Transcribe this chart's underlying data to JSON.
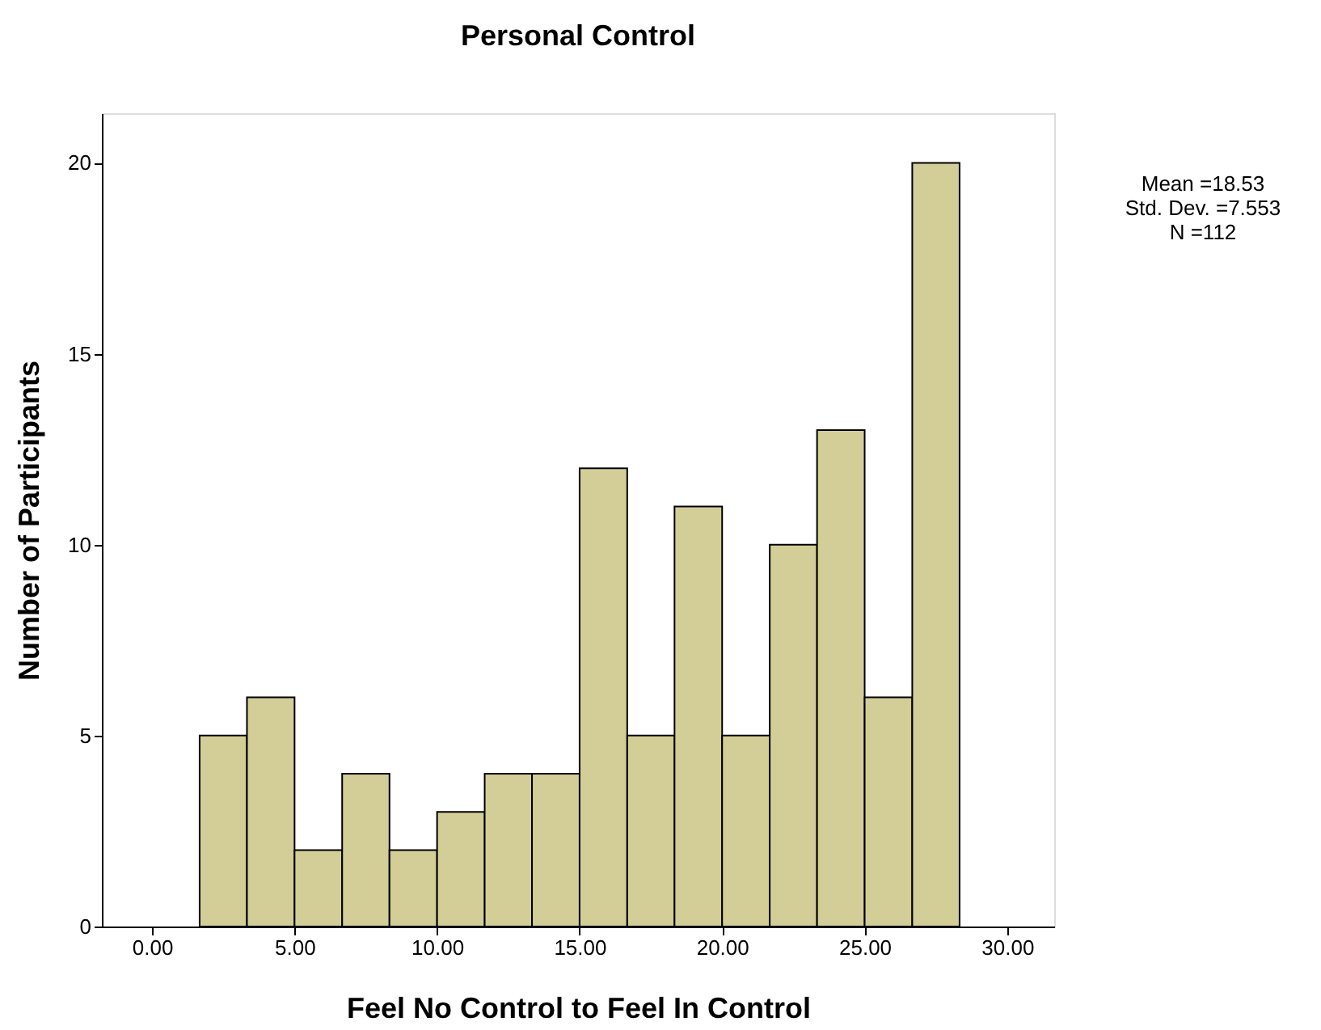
{
  "chart_data": {
    "type": "histogram",
    "title": "Personal Control",
    "xlabel": "Feel No Control            to            Feel In Control",
    "ylabel": "Number of Participants",
    "bins": [
      1.67,
      3.33,
      5.0,
      6.67,
      8.33,
      10.0,
      11.67,
      13.33,
      15.0,
      16.67,
      18.33,
      20.0,
      21.67,
      23.33,
      25.0,
      26.67,
      28.33
    ],
    "values": [
      5,
      6,
      2,
      4,
      2,
      3,
      4,
      4,
      12,
      5,
      11,
      5,
      10,
      13,
      6,
      20
    ],
    "color": "#d3ce97",
    "xlim": [
      -1.76,
      31.65
    ],
    "ylim": [
      0,
      21.3
    ],
    "xticks": [
      {
        "value": 0,
        "label": "0.00"
      },
      {
        "value": 5,
        "label": "5.00"
      },
      {
        "value": 10,
        "label": "10.00"
      },
      {
        "value": 15,
        "label": "15.00"
      },
      {
        "value": 20,
        "label": "20.00"
      },
      {
        "value": 25,
        "label": "25.00"
      },
      {
        "value": 30,
        "label": "30.00"
      }
    ],
    "yticks": [
      0,
      5,
      10,
      15,
      20
    ],
    "annotations": [
      "Mean =18.53",
      "Std. Dev. =7.553",
      "N =112"
    ]
  }
}
